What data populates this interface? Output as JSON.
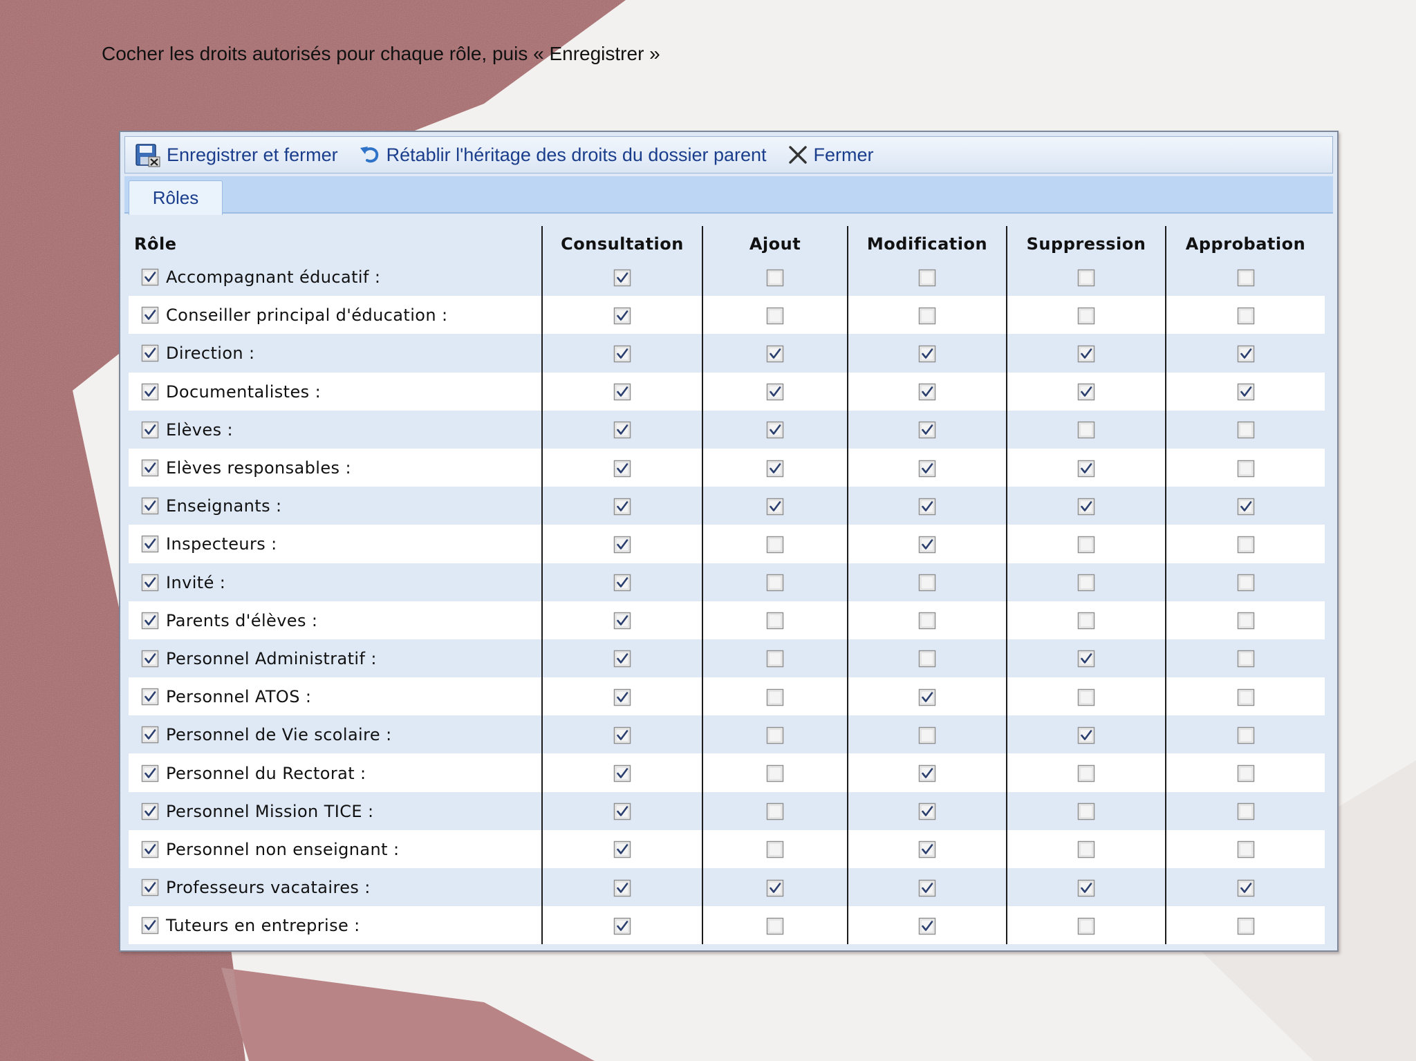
{
  "instruction": "Cocher les droits autorisés pour chaque rôle, puis « Enregistrer »",
  "colors": {
    "accent_text": "#1b3e8c",
    "background_red": "#a35a5e",
    "dialog_bg": "#dfe9f6"
  },
  "toolbar": {
    "save_close": {
      "label": "Enregistrer et fermer",
      "icon": "save-close-icon"
    },
    "restore": {
      "label": "Rétablir l'héritage des droits du dossier parent",
      "icon": "undo-arrow-icon"
    },
    "close": {
      "label": "Fermer",
      "icon": "close-icon"
    }
  },
  "tabs": [
    {
      "label": "Rôles"
    }
  ],
  "table": {
    "headers": [
      "Rôle",
      "Consultation",
      "Ajout",
      "Modification",
      "Suppression",
      "Approbation"
    ],
    "rows": [
      {
        "role": "Accompagnant éducatif :",
        "enabled": true,
        "rights": [
          true,
          false,
          false,
          false,
          false
        ]
      },
      {
        "role": "Conseiller principal d'éducation :",
        "enabled": true,
        "rights": [
          true,
          false,
          false,
          false,
          false
        ]
      },
      {
        "role": "Direction :",
        "enabled": true,
        "rights": [
          true,
          true,
          true,
          true,
          true
        ]
      },
      {
        "role": "Documentalistes :",
        "enabled": true,
        "rights": [
          true,
          true,
          true,
          true,
          true
        ]
      },
      {
        "role": "Elèves :",
        "enabled": true,
        "rights": [
          true,
          true,
          true,
          false,
          false
        ]
      },
      {
        "role": "Elèves responsables :",
        "enabled": true,
        "rights": [
          true,
          true,
          true,
          true,
          false
        ]
      },
      {
        "role": "Enseignants :",
        "enabled": true,
        "rights": [
          true,
          true,
          true,
          true,
          true
        ]
      },
      {
        "role": "Inspecteurs :",
        "enabled": true,
        "rights": [
          true,
          false,
          true,
          false,
          false
        ]
      },
      {
        "role": "Invité :",
        "enabled": true,
        "rights": [
          true,
          false,
          false,
          false,
          false
        ]
      },
      {
        "role": "Parents d'élèves :",
        "enabled": true,
        "rights": [
          true,
          false,
          false,
          false,
          false
        ]
      },
      {
        "role": "Personnel Administratif :",
        "enabled": true,
        "rights": [
          true,
          false,
          false,
          true,
          false
        ]
      },
      {
        "role": "Personnel ATOS :",
        "enabled": true,
        "rights": [
          true,
          false,
          true,
          false,
          false
        ]
      },
      {
        "role": "Personnel de Vie scolaire :",
        "enabled": true,
        "rights": [
          true,
          false,
          false,
          true,
          false
        ]
      },
      {
        "role": "Personnel du Rectorat :",
        "enabled": true,
        "rights": [
          true,
          false,
          true,
          false,
          false
        ]
      },
      {
        "role": "Personnel Mission TICE :",
        "enabled": true,
        "rights": [
          true,
          false,
          true,
          false,
          false
        ]
      },
      {
        "role": "Personnel non enseignant :",
        "enabled": true,
        "rights": [
          true,
          false,
          true,
          false,
          false
        ]
      },
      {
        "role": "Professeurs vacataires :",
        "enabled": true,
        "rights": [
          true,
          true,
          true,
          true,
          true
        ]
      },
      {
        "role": "Tuteurs en entreprise :",
        "enabled": true,
        "rights": [
          true,
          false,
          true,
          false,
          false
        ]
      }
    ]
  }
}
